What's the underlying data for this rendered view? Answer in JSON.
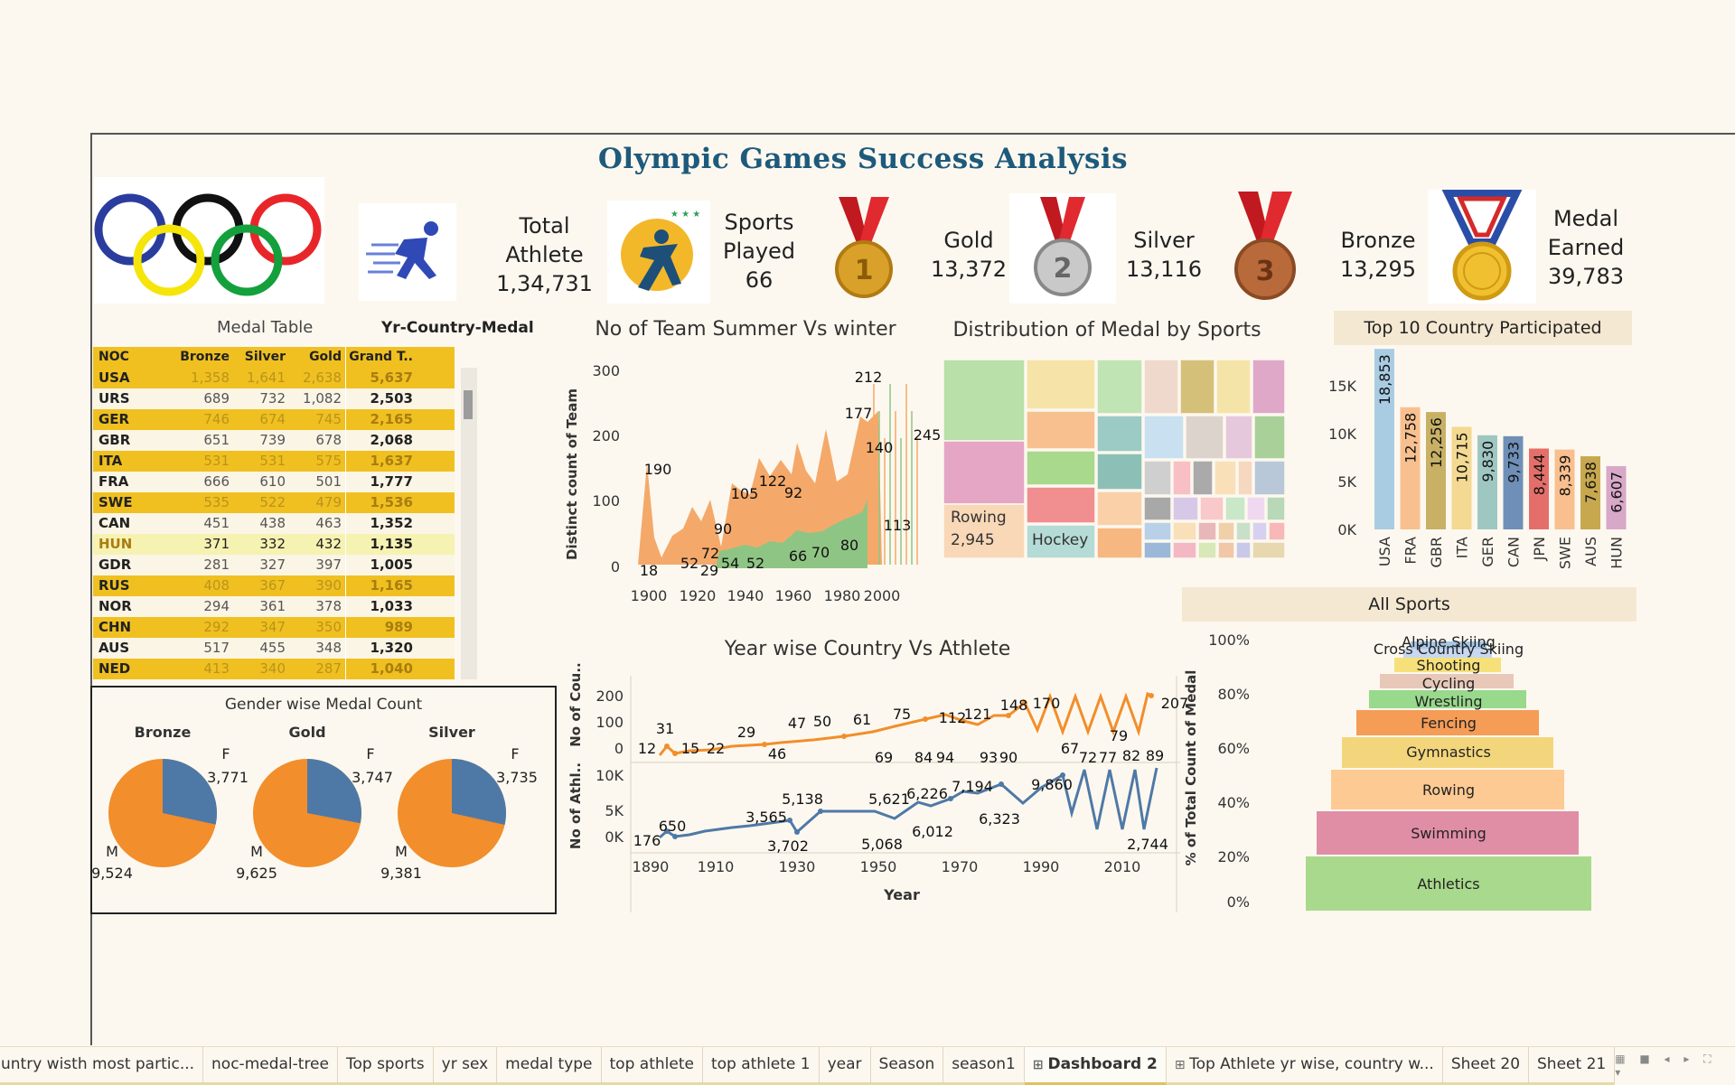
{
  "title": "Olympic Games Success Analysis",
  "kpis": {
    "athlete": {
      "label1": "Total",
      "label2": "Athlete",
      "value": "1,34,731"
    },
    "sports": {
      "label1": "Sports",
      "label2": "Played",
      "value": "66"
    },
    "gold": {
      "label": "Gold",
      "value": "13,372"
    },
    "silver": {
      "label": "Silver",
      "value": "13,116"
    },
    "bronze": {
      "label": "Bronze",
      "value": "13,295"
    },
    "earned": {
      "label1": "Medal",
      "label2": "Earned",
      "value": "39,783"
    }
  },
  "medal_table": {
    "title": "Medal Table",
    "subtitle": "Yr-Country-Medal",
    "headers": [
      "NOC",
      "Bronze",
      "Silver",
      "Gold",
      "Grand T.."
    ],
    "rows": [
      [
        "USA",
        "1,358",
        "1,641",
        "2,638",
        "5,637"
      ],
      [
        "URS",
        "689",
        "732",
        "1,082",
        "2,503"
      ],
      [
        "GER",
        "746",
        "674",
        "745",
        "2,165"
      ],
      [
        "GBR",
        "651",
        "739",
        "678",
        "2,068"
      ],
      [
        "ITA",
        "531",
        "531",
        "575",
        "1,637"
      ],
      [
        "FRA",
        "666",
        "610",
        "501",
        "1,777"
      ],
      [
        "SWE",
        "535",
        "522",
        "479",
        "1,536"
      ],
      [
        "CAN",
        "451",
        "438",
        "463",
        "1,352"
      ],
      [
        "HUN",
        "371",
        "332",
        "432",
        "1,135"
      ],
      [
        "GDR",
        "281",
        "327",
        "397",
        "1,005"
      ],
      [
        "RUS",
        "408",
        "367",
        "390",
        "1,165"
      ],
      [
        "NOR",
        "294",
        "361",
        "378",
        "1,033"
      ],
      [
        "CHN",
        "292",
        "347",
        "350",
        "989"
      ],
      [
        "AUS",
        "517",
        "455",
        "348",
        "1,320"
      ],
      [
        "NED",
        "413",
        "340",
        "287",
        "1,040"
      ]
    ]
  },
  "gender": {
    "title": "Gender wise Medal Count",
    "pies": [
      {
        "name": "Bronze",
        "f_label": "F",
        "f": "3,771",
        "m_label": "M",
        "m": "9,524",
        "f_value": 3771,
        "m_value": 9524
      },
      {
        "name": "Gold",
        "f_label": "F",
        "f": "3,747",
        "m_label": "M",
        "m": "9,625",
        "f_value": 3747,
        "m_value": 9625
      },
      {
        "name": "Silver",
        "f_label": "F",
        "f": "3,735",
        "m_label": "M",
        "m": "9,381",
        "f_value": 3735,
        "m_value": 9381
      }
    ],
    "colors": {
      "female": "#4e79a7",
      "male": "#f28e2b"
    }
  },
  "teams": {
    "title": "No of Team Summer Vs winter",
    "ylabel": "Distinct count of Team",
    "yticks": [
      "0",
      "100",
      "200",
      "300"
    ],
    "xticks": [
      "1900",
      "1920",
      "1940",
      "1960",
      "1980",
      "2000"
    ],
    "summer_labels": [
      "190",
      "52",
      "72",
      "90",
      "105",
      "122",
      "92",
      "177",
      "212",
      "140",
      "245"
    ],
    "winter_labels": [
      "18",
      "29",
      "54",
      "52",
      "66",
      "70",
      "80",
      "113"
    ],
    "colors": {
      "summer": "#f4a96a",
      "winter": "#8fc584"
    }
  },
  "treemap": {
    "title": "Distribution of Medal by Sports",
    "labels": [
      {
        "name": "Rowing",
        "value": "2,945"
      },
      {
        "name": "Hockey",
        "value": ""
      }
    ]
  },
  "top10": {
    "title": "Top 10 Country Participated",
    "yticks": [
      "0K",
      "5K",
      "10K",
      "15K"
    ],
    "countries": [
      "USA",
      "FRA",
      "GBR",
      "ITA",
      "GER",
      "CAN",
      "JPN",
      "SWE",
      "AUS",
      "HUN"
    ],
    "values": [
      18853,
      12758,
      12256,
      10715,
      9830,
      9733,
      8444,
      8339,
      7638,
      6607
    ],
    "value_labels": [
      "18,853",
      "12,758",
      "12,256",
      "10,715",
      "9,830",
      "9,733",
      "8,444",
      "8,339",
      "7,638",
      "6,607"
    ],
    "colors": [
      "#a9cce3",
      "#f9c08f",
      "#c8b165",
      "#f3d991",
      "#9fc7c2",
      "#6f8fb8",
      "#e46f6a",
      "#f9bf8e",
      "#c8a84f",
      "#d8a8c8"
    ]
  },
  "yearwise": {
    "title": "Year wise Country Vs Athlete",
    "ylabel_top": "No of Cou..",
    "ylabel_bottom": "No of Athl..",
    "xlabel": "Year",
    "yticks_top": [
      "0",
      "100",
      "200"
    ],
    "yticks_bottom": [
      "0K",
      "5K",
      "10K"
    ],
    "xticks": [
      "1890",
      "1910",
      "1930",
      "1950",
      "1970",
      "1990",
      "2010"
    ],
    "country_labels": [
      "12",
      "31",
      "15",
      "22",
      "29",
      "46",
      "47",
      "50",
      "61",
      "69",
      "75",
      "84",
      "94",
      "112",
      "121",
      "93",
      "148",
      "90",
      "170",
      "67",
      "72",
      "77",
      "79",
      "82",
      "89",
      "207"
    ],
    "athlete_labels": [
      "176",
      "650",
      "3,565",
      "3,702",
      "5,138",
      "5,068",
      "5,621",
      "6,226",
      "6,012",
      "7,194",
      "6,323",
      "9,860",
      "2,744"
    ]
  },
  "sports_funnel": {
    "banner": "All Sports",
    "ylabel": "% of Total Count of Medal",
    "yticks": [
      "0%",
      "20%",
      "40%",
      "60%",
      "80%",
      "100%"
    ],
    "segments": [
      "Athletics",
      "Swimming",
      "Rowing",
      "Gymnastics",
      "Fencing",
      "Wrestling",
      "Cycling",
      "Shooting",
      "Cross Country Skiing",
      "Alpine Skiing"
    ],
    "colors": [
      "#a9d98c",
      "#e08ea6",
      "#fdca93",
      "#f3d67c",
      "#f59c56",
      "#98d98c",
      "#e8c8b8",
      "#f6e07a",
      "#c8d8f0",
      "#a8c8e8"
    ]
  },
  "tabs": [
    "untry wisth most partic...",
    "noc-medal-tree",
    "Top sports",
    "yr sex",
    "medal type",
    "top athlete",
    "top athlete 1",
    "year",
    "Season",
    "season1",
    "Dashboard 2",
    "Top Athlete yr wise, country w...",
    "Sheet 20",
    "Sheet 21"
  ],
  "active_tab": "Dashboard 2"
}
